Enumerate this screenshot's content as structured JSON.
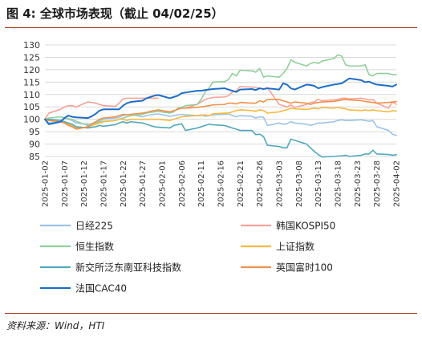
{
  "figure": {
    "title": "图 4:  全球市场表现（截止 04/02/25）",
    "source": "资料来源：Wind，HTI"
  },
  "colors": {
    "accent_rule": "#a8321e",
    "grid": "#d9d9d9",
    "axis_text": "#333333"
  },
  "chart_data": {
    "type": "line",
    "ylim": [
      85,
      130
    ],
    "yticks": [
      85,
      90,
      95,
      100,
      105,
      110,
      115,
      120,
      125,
      130
    ],
    "xlim": [
      "2025-01-02",
      "2025-04-02"
    ],
    "xticks": [
      "2025-01-02",
      "2025-01-07",
      "2025-01-12",
      "2025-01-17",
      "2025-01-22",
      "2025-01-27",
      "2025-02-01",
      "2025-02-06",
      "2025-02-11",
      "2025-02-16",
      "2025-02-21",
      "2025-02-26",
      "2025-03-03",
      "2025-03-08",
      "2025-03-13",
      "2025-03-18",
      "2025-03-23",
      "2025-03-28",
      "2025-04-02"
    ],
    "grid": "horizontal",
    "legend_position": "bottom",
    "x": [
      "2025-01-02",
      "2025-01-03",
      "2025-01-06",
      "2025-01-07",
      "2025-01-08",
      "2025-01-09",
      "2025-01-10",
      "2025-01-13",
      "2025-01-14",
      "2025-01-15",
      "2025-01-16",
      "2025-01-17",
      "2025-01-20",
      "2025-01-21",
      "2025-01-22",
      "2025-01-23",
      "2025-01-24",
      "2025-01-27",
      "2025-01-28",
      "2025-01-29",
      "2025-01-30",
      "2025-01-31",
      "2025-02-03",
      "2025-02-04",
      "2025-02-05",
      "2025-02-06",
      "2025-02-07",
      "2025-02-10",
      "2025-02-11",
      "2025-02-12",
      "2025-02-13",
      "2025-02-14",
      "2025-02-17",
      "2025-02-18",
      "2025-02-19",
      "2025-02-20",
      "2025-02-21",
      "2025-02-24",
      "2025-02-25",
      "2025-02-26",
      "2025-02-27",
      "2025-02-28",
      "2025-03-03",
      "2025-03-04",
      "2025-03-05",
      "2025-03-06",
      "2025-03-07",
      "2025-03-10",
      "2025-03-11",
      "2025-03-12",
      "2025-03-13",
      "2025-03-14",
      "2025-03-17",
      "2025-03-18",
      "2025-03-19",
      "2025-03-20",
      "2025-03-21",
      "2025-03-24",
      "2025-03-25",
      "2025-03-26",
      "2025-03-27",
      "2025-03-28",
      "2025-03-31",
      "2025-04-01",
      "2025-04-02"
    ],
    "series": [
      {
        "name": "日经225",
        "color": "#9dc3e6",
        "width": 1.6,
        "values": [
          100,
          98.5,
          99,
          100.5,
          100,
          99.5,
          98.5,
          98,
          98.2,
          99,
          99.5,
          100,
          100.5,
          100.8,
          101.5,
          101.8,
          102,
          101,
          101.5,
          101.8,
          102,
          102.2,
          101.2,
          101.5,
          101.8,
          102,
          101.8,
          101.5,
          101.8,
          101.2,
          101.5,
          101.8,
          102,
          102.2,
          101.5,
          101,
          101.5,
          101.2,
          100.5,
          101,
          100.8,
          97.5,
          98.5,
          98,
          98.2,
          99,
          98.5,
          98,
          97.5,
          98,
          98.5,
          98.5,
          99,
          99.5,
          99.8,
          99.5,
          99.5,
          99.8,
          99.5,
          99.2,
          99.5,
          97,
          95.5,
          94,
          93.5
        ]
      },
      {
        "name": "韩国KOSPI50",
        "color": "#f4a39a",
        "width": 1.6,
        "values": [
          100,
          102.5,
          104,
          105,
          105.5,
          105.5,
          105,
          107,
          106.8,
          106.5,
          106,
          105.5,
          105.2,
          106.5,
          108.2,
          108.5,
          108.5,
          108.5,
          108.5,
          108.5,
          108.5,
          108.5,
          null,
          null,
          null,
          null,
          104.5,
          106,
          107,
          108,
          108.5,
          108.8,
          109,
          109.5,
          111,
          111.5,
          113.2,
          113,
          112.8,
          112.5,
          112.2,
          112.8,
          106,
          105.5,
          105,
          105.8,
          104.8,
          106,
          106.8,
          107,
          108,
          107.5,
          107.8,
          108,
          108.5,
          108.5,
          108.2,
          108.5,
          108.2,
          107.8,
          108,
          106.5,
          104.5,
          107,
          106
        ]
      },
      {
        "name": "恒生指数",
        "color": "#93cd9d",
        "width": 1.6,
        "values": [
          100,
          100.5,
          101,
          100.5,
          100.2,
          100,
          99.2,
          97.5,
          97.8,
          98.5,
          99,
          99.2,
          99.5,
          100,
          100.5,
          101,
          101.5,
          102,
          102.5,
          102.8,
          103,
          103.2,
          102.5,
          103,
          104.5,
          104.8,
          105.5,
          106,
          108,
          111,
          112.5,
          115,
          115.2,
          116,
          118.5,
          117.5,
          119.8,
          119.5,
          119,
          120.5,
          117,
          117.5,
          117,
          118.5,
          120.5,
          124,
          123,
          121.5,
          122.5,
          123,
          122.5,
          123.5,
          124.5,
          126,
          125.5,
          122,
          121.5,
          121.5,
          122,
          118,
          117.5,
          118.5,
          118.5,
          118,
          118
        ]
      },
      {
        "name": "上证指数",
        "color": "#f6b941",
        "width": 1.6,
        "values": [
          100,
          99.5,
          99,
          98.5,
          98,
          97.5,
          96.5,
          96.8,
          97.5,
          98,
          98.5,
          99,
          99.5,
          100,
          100,
          99.5,
          100,
          100,
          100,
          100,
          100,
          100,
          99.5,
          100,
          100.5,
          101,
          101.2,
          101.5,
          101.5,
          101.8,
          101.5,
          102.2,
          102.5,
          102.5,
          103,
          103.5,
          103.8,
          103.5,
          103.2,
          103.8,
          103.5,
          102.5,
          103,
          103.5,
          103.8,
          104.5,
          104.2,
          104,
          104.2,
          104.5,
          104.2,
          104.8,
          104.5,
          104.8,
          104.5,
          104.2,
          103.8,
          103.5,
          103.8,
          103.5,
          103.8,
          103.5,
          103,
          103.5,
          103.3
        ]
      },
      {
        "name": "新交所泛东南亚科技指数",
        "color": "#52a7b9",
        "width": 1.6,
        "values": [
          100,
          100,
          99.5,
          99,
          98.5,
          98,
          97,
          96.5,
          96.8,
          97,
          97.5,
          97.2,
          97.8,
          98.5,
          99,
          98.5,
          99,
          98.5,
          98,
          97.5,
          97,
          96.8,
          96.5,
          97.5,
          97.8,
          98.2,
          95.5,
          96.5,
          97,
          97.5,
          98,
          97.8,
          97.5,
          97,
          96.5,
          96,
          95.5,
          95.5,
          93.8,
          94,
          93,
          89.5,
          89,
          88.5,
          88.5,
          92,
          91.5,
          90,
          88.5,
          87,
          85.8,
          84.8,
          85,
          85.2,
          85.2,
          85.5,
          85,
          85.5,
          86,
          86,
          87.5,
          86,
          85.8,
          85.5,
          85.7
        ]
      },
      {
        "name": "英国富时100",
        "color": "#f0914b",
        "width": 1.6,
        "values": [
          100,
          99.5,
          99,
          98.5,
          97.5,
          97,
          96,
          97,
          98,
          99,
          100,
          100.5,
          101,
          101.5,
          102,
          101.8,
          102,
          102.5,
          102.8,
          103.2,
          103.5,
          103.8,
          103,
          103.5,
          104,
          104.5,
          104.5,
          104.8,
          105,
          105.2,
          105.5,
          105.8,
          106,
          106.5,
          106.5,
          106.2,
          106.8,
          106.5,
          106.5,
          107.5,
          107,
          108,
          108,
          107.5,
          107,
          106.5,
          107,
          106.5,
          106,
          106.5,
          106.8,
          107,
          107.2,
          107.5,
          107.8,
          108,
          107.8,
          107.5,
          107.2,
          107,
          106.8,
          106.5,
          106.8,
          107,
          107.2
        ]
      },
      {
        "name": "法国CAC40",
        "color": "#1f6dc4",
        "width": 2.0,
        "values": [
          100,
          98,
          99,
          100.5,
          101.5,
          101,
          100.8,
          100.5,
          101.2,
          102.2,
          103.5,
          104,
          104,
          104,
          105.5,
          106.5,
          107,
          107.5,
          108.5,
          109,
          109.5,
          109.8,
          108.5,
          109,
          109.5,
          110.5,
          110.8,
          111.5,
          111.5,
          111.8,
          112,
          112.2,
          112.5,
          112,
          111.5,
          111,
          112,
          112.2,
          111.8,
          112.5,
          112.2,
          112.5,
          112,
          114.5,
          114,
          112.5,
          112,
          114,
          113.8,
          113.5,
          112.5,
          113,
          114,
          114.2,
          114.5,
          115.5,
          116.5,
          115.8,
          115,
          115.2,
          114.5,
          114,
          113.5,
          113.2,
          114
        ]
      }
    ]
  }
}
